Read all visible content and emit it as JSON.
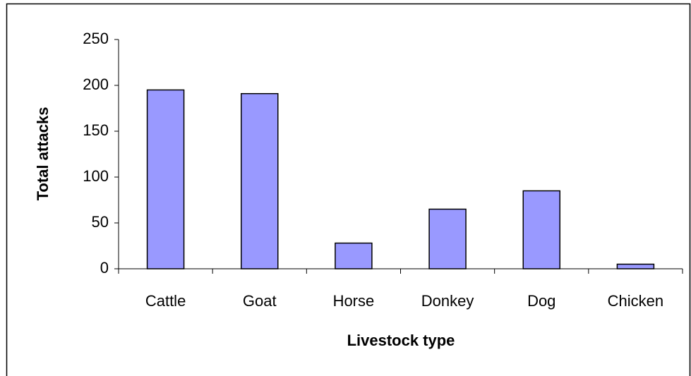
{
  "chart_data": {
    "type": "bar",
    "xlabel": "Livestock type",
    "ylabel": "Total attacks",
    "categories": [
      "Cattle",
      "Goat",
      "Horse",
      "Donkey",
      "Dog",
      "Chicken"
    ],
    "values": [
      195,
      191,
      28,
      65,
      85,
      5
    ],
    "color": "#9999ff",
    "ylim": [
      0,
      250
    ],
    "yticks": [
      0,
      50,
      100,
      150,
      200,
      250
    ],
    "grid": false
  }
}
